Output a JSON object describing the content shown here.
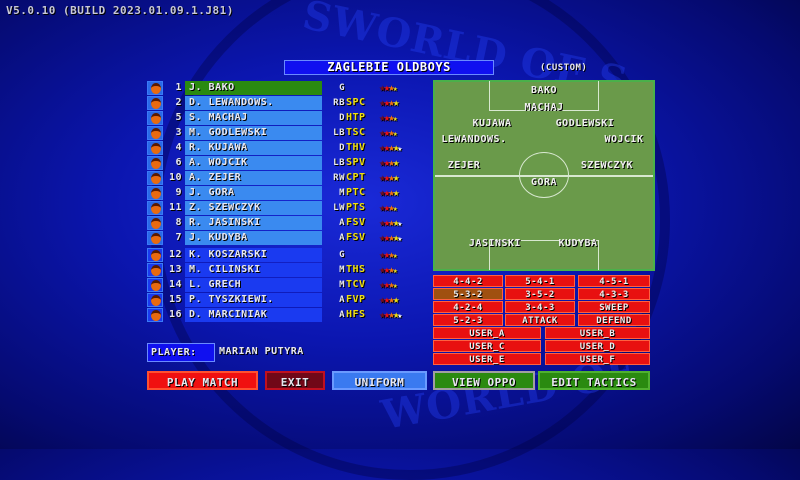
{
  "version": "V5.0.10 (BUILD 2023.01.09.1.J81)",
  "team": {
    "name": "ZAGLEBIE OLDBOYS",
    "type": "(CUSTOM)"
  },
  "players": [
    {
      "num": "1",
      "name": "J. BAKO",
      "pos": "G",
      "skill": "",
      "stars": 3.5
    },
    {
      "num": "2",
      "name": "D. LEWANDOWS.",
      "pos": "RB",
      "skill": "SPC",
      "stars": 4
    },
    {
      "num": "5",
      "name": "S. MACHAJ",
      "pos": "D",
      "skill": "HTP",
      "stars": 3.5
    },
    {
      "num": "3",
      "name": "M. GODLEWSKI",
      "pos": "LB",
      "skill": "TSC",
      "stars": 3.5
    },
    {
      "num": "4",
      "name": "R. KUJAWA",
      "pos": "D",
      "skill": "THV",
      "stars": 4.5
    },
    {
      "num": "6",
      "name": "A. WOJCIK",
      "pos": "LB",
      "skill": "SPV",
      "stars": 4
    },
    {
      "num": "10",
      "name": "A. ZEJER",
      "pos": "RW",
      "skill": "CPT",
      "stars": 4
    },
    {
      "num": "9",
      "name": "J. GORA",
      "pos": "M",
      "skill": "PTC",
      "stars": 4
    },
    {
      "num": "11",
      "name": "Z. SZEWCZYK",
      "pos": "LW",
      "skill": "PTS",
      "stars": 3.5
    },
    {
      "num": "8",
      "name": "R. JASINSKI",
      "pos": "A",
      "skill": "FSV",
      "stars": 4.5
    },
    {
      "num": "7",
      "name": "J. KUDYBA",
      "pos": "A",
      "skill": "FSV",
      "stars": 4.5
    },
    {
      "num": "12",
      "name": "K. KOSZARSKI",
      "pos": "G",
      "skill": "",
      "stars": 3.5
    },
    {
      "num": "13",
      "name": "M. CILINSKI",
      "pos": "M",
      "skill": "THS",
      "stars": 3.5
    },
    {
      "num": "14",
      "name": "L. GRECH",
      "pos": "M",
      "skill": "TCV",
      "stars": 3.5
    },
    {
      "num": "15",
      "name": "P. TYSZKIEWI.",
      "pos": "A",
      "skill": "FVP",
      "stars": 4
    },
    {
      "num": "16",
      "name": "D. MARCINIAK",
      "pos": "A",
      "skill": "HFS",
      "stars": 4.5
    }
  ],
  "pitch_names": [
    "BAKO",
    "MACHAJ",
    "KUJAWA",
    "GODLEWSKI",
    "LEWANDOWS.",
    "WOJCIK",
    "ZEJER",
    "SZEWCZYK",
    "GORA",
    "JASINSKI",
    "KUDYBA"
  ],
  "formations": [
    "4-4-2",
    "5-4-1",
    "4-5-1",
    "5-3-2",
    "3-5-2",
    "4-3-3",
    "4-2-4",
    "3-4-3",
    "SWEEP",
    "5-2-3",
    "ATTACK",
    "DEFEND"
  ],
  "selected_formation": "5-3-2",
  "user_tactics": [
    "USER_A",
    "USER_B",
    "USER_C",
    "USER_D",
    "USER_E",
    "USER_F"
  ],
  "player_label": "PLAYER:",
  "player_name": "MARIAN PUTYRA",
  "buttons": {
    "play": "PLAY MATCH",
    "exit": "EXIT",
    "uniform": "UNIFORM",
    "view_oppo": "VIEW OPPO",
    "edit_tactics": "EDIT TACTICS"
  },
  "watermark": [
    "SWORLD OF S",
    "WORLD OF"
  ]
}
